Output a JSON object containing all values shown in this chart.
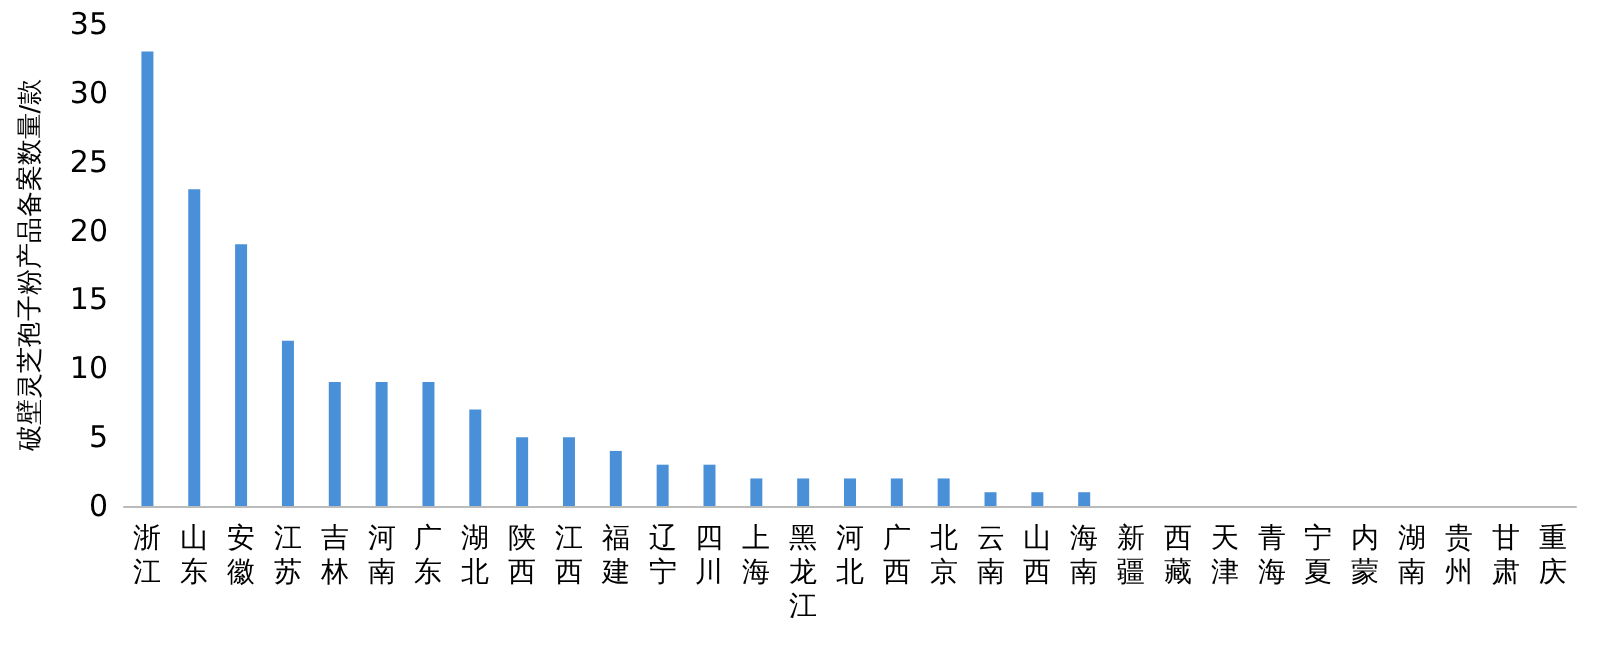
{
  "chart_data": {
    "type": "bar",
    "ylabel": "破壁灵芝孢子粉产品备案数量/款",
    "categories": [
      "浙江",
      "山东",
      "安徽",
      "江苏",
      "吉林",
      "河南",
      "广东",
      "湖北",
      "陕西",
      "江西",
      "福建",
      "辽宁",
      "四川",
      "上海",
      "黑龙江",
      "河北",
      "广西",
      "北京",
      "云南",
      "山西",
      "海南",
      "新疆",
      "西藏",
      "天津",
      "青海",
      "宁夏",
      "内蒙",
      "湖南",
      "贵州",
      "甘肃",
      "重庆"
    ],
    "values": [
      33,
      23,
      19,
      12,
      9,
      9,
      9,
      7,
      5,
      5,
      4,
      3,
      3,
      2,
      2,
      2,
      2,
      2,
      1,
      1,
      1,
      0,
      0,
      0,
      0,
      0,
      0,
      0,
      0,
      0,
      0
    ],
    "color": "#4a90d9",
    "ylim": [
      0,
      35
    ],
    "yticks": [
      0,
      5,
      10,
      15,
      20,
      25,
      30,
      35
    ],
    "grid": false
  }
}
